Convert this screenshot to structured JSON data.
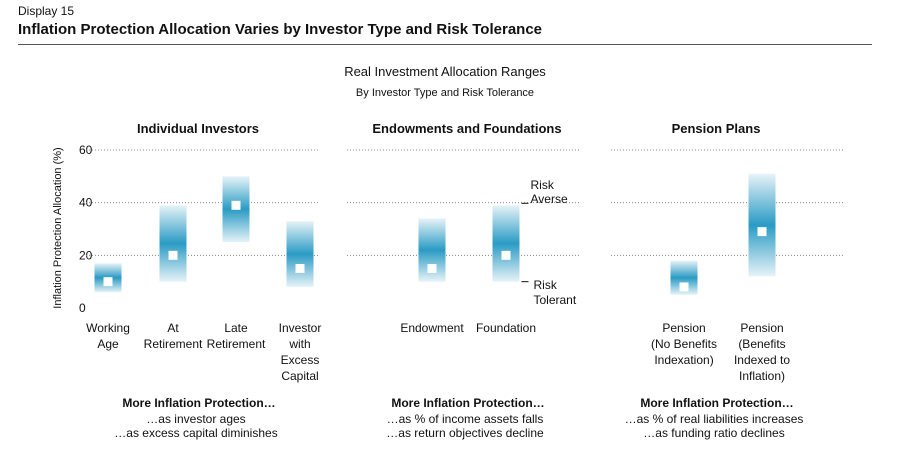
{
  "header": {
    "display_label": "Display 15",
    "title": "Inflation Protection Allocation Varies by Investor Type and Risk Tolerance"
  },
  "colors": {
    "bar_edge": "#e7f3f8",
    "bar_center": "#2a9bc4",
    "marker": "#ffffff",
    "grid": "#888888",
    "text": "#111111"
  },
  "chart_data": {
    "type": "range_bar",
    "title": "Real Investment Allocation Ranges",
    "subtitle": "By Investor Type and Risk Tolerance",
    "ylabel": "Inflation Protection Allocation (%)",
    "ylim": [
      0,
      60
    ],
    "yticks": [
      "0",
      "20",
      "40",
      "60"
    ],
    "grid": true,
    "risk_annotation": {
      "top": [
        "Risk",
        "Averse"
      ],
      "bottom": [
        "Risk",
        "Tolerant"
      ]
    },
    "panels": [
      {
        "title": "Individual Investors",
        "categories": [
          {
            "label": [
              "Working",
              "Age"
            ],
            "low": 6,
            "high": 17,
            "point": 10
          },
          {
            "label": [
              "At",
              "Retirement"
            ],
            "low": 10,
            "high": 39,
            "point": 20
          },
          {
            "label": [
              "Late",
              "Retirement"
            ],
            "low": 25,
            "high": 50,
            "point": 39
          },
          {
            "label": [
              "Investor",
              "with",
              "Excess",
              "Capital"
            ],
            "low": 8,
            "high": 33,
            "point": 15
          }
        ],
        "footnote": {
          "heading": "More Inflation Protection…",
          "lines": [
            "…as investor ages",
            "…as excess capital diminishes"
          ]
        }
      },
      {
        "title": "Endowments and Foundations",
        "categories": [
          {
            "label": [
              "Endowment"
            ],
            "low": 10,
            "high": 34,
            "point": 15
          },
          {
            "label": [
              "Foundation"
            ],
            "low": 10,
            "high": 39,
            "point": 20
          }
        ],
        "footnote": {
          "heading": "More Inflation Protection…",
          "lines": [
            "…as % of income assets falls",
            "…as return objectives decline"
          ]
        }
      },
      {
        "title": "Pension Plans",
        "categories": [
          {
            "label": [
              "Pension",
              "(No Benefits",
              "Indexation)"
            ],
            "low": 5,
            "high": 18,
            "point": 8
          },
          {
            "label": [
              "Pension",
              "(Benefits",
              "Indexed to",
              "Inflation)"
            ],
            "low": 12,
            "high": 51,
            "point": 29
          }
        ],
        "footnote": {
          "heading": "More Inflation Protection…",
          "lines": [
            "…as % of real liabilities increases",
            "…as funding ratio declines"
          ]
        }
      }
    ]
  }
}
